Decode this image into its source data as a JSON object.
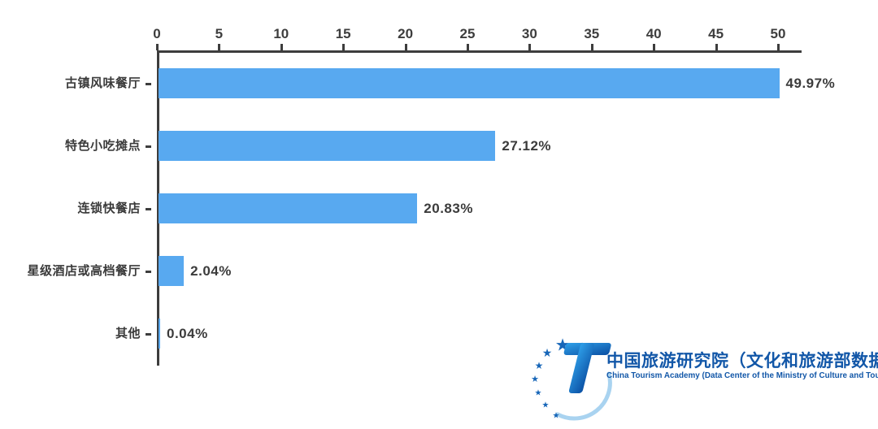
{
  "chart_data": {
    "type": "bar",
    "orientation": "horizontal",
    "title": "",
    "xlabel": "",
    "ylabel": "",
    "xlim": [
      0,
      50
    ],
    "x_ticks": [
      0,
      5,
      10,
      15,
      20,
      25,
      30,
      35,
      40,
      45,
      50
    ],
    "categories": [
      "古镇风味餐厅",
      "特色小吃摊点",
      "连锁快餐店",
      "星级酒店或高档餐厅",
      "其他"
    ],
    "values": [
      49.97,
      27.12,
      20.83,
      2.04,
      0.04
    ],
    "value_labels": [
      "49.97%",
      "27.12%",
      "20.83%",
      "2.04%",
      "0.04%"
    ],
    "bar_color": "#58A9F0",
    "axis_color": "#3D3D3D",
    "text_color": "#3B3B3B",
    "grid": false,
    "legend": "none"
  },
  "logo": {
    "title_cn": "中国旅游研究院（文化和旅游部数据中心）",
    "title_en": "China Tourism Academy (Data Center of the Ministry of Culture and Tourism)",
    "brand_color": "#1257A8",
    "brand_color_light": "#2F7FD0",
    "star_icon": "★"
  }
}
